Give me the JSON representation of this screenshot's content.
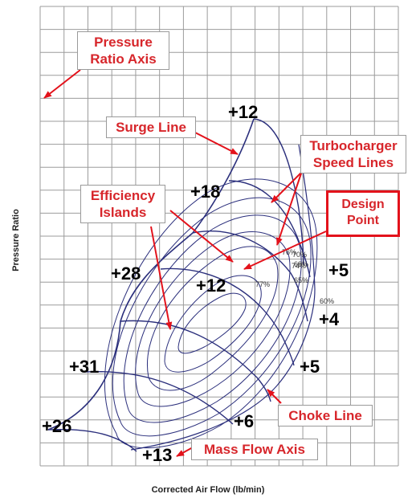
{
  "chart_data": {
    "type": "compressor-map",
    "xlabel": "Corrected Air Flow (lb/min)",
    "ylabel": "Pressure Ratio",
    "grid": true,
    "efficiency_labels": [
      "76%",
      "70%",
      "74%",
      "68%",
      "77%",
      "65%",
      "60%"
    ],
    "annotations": {
      "pressure_ratio_axis": "Pressure Ratio Axis",
      "surge_line": "Surge Line",
      "speed_lines": "Turbocharger Speed Lines",
      "efficiency_islands": "Efficiency Islands",
      "design_point": "Design Point",
      "choke_line": "Choke Line",
      "mass_flow_axis": "Mass Flow Axis"
    },
    "numbers": [
      "+12",
      "+18",
      "+28",
      "+12",
      "+5",
      "+4",
      "+31",
      "+5",
      "+26",
      "+6",
      "+13"
    ],
    "colors": {
      "lines": "#2b2f7c",
      "callout_text": "#d7262b",
      "design_border": "#e3121b",
      "grid": "#9b9b9b"
    }
  }
}
